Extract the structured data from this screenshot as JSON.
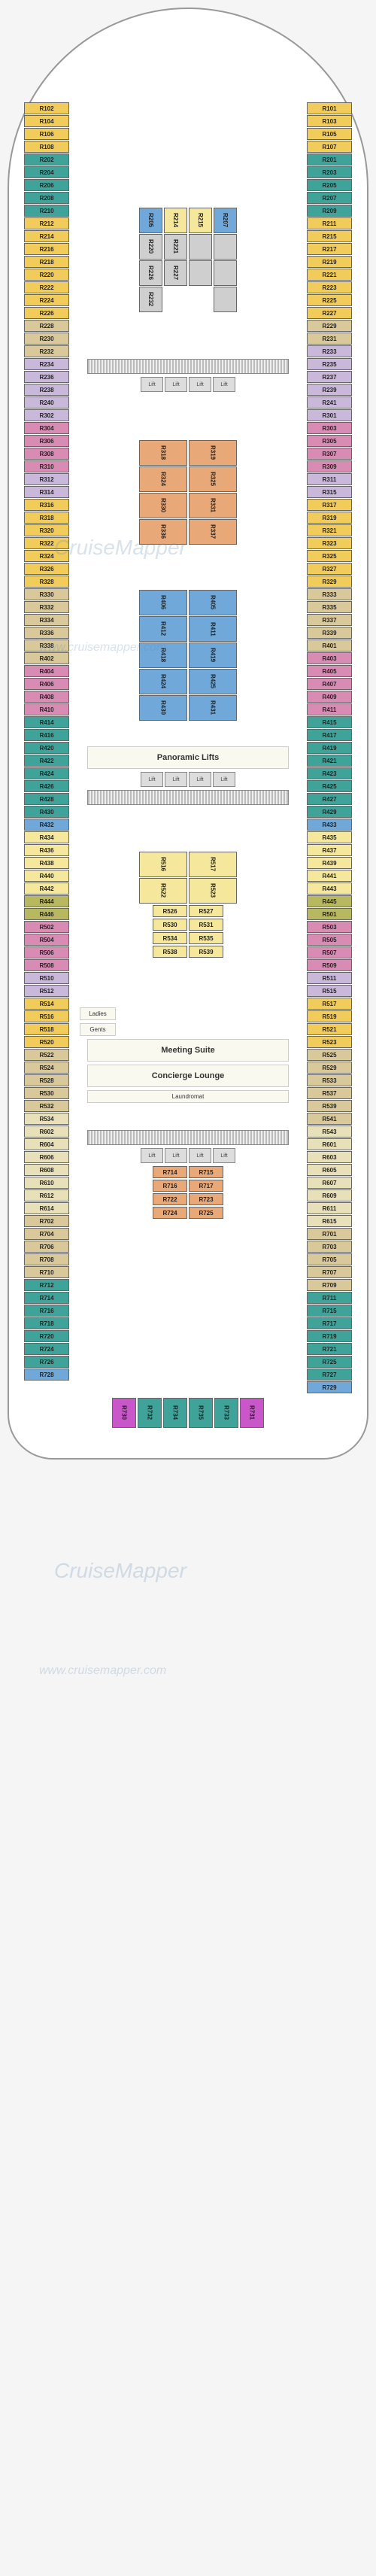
{
  "watermarks": {
    "brand": "CruiseMapper",
    "url": "www.cruisemapper.com"
  },
  "colors": {
    "yellow": "#f2cc5a",
    "teal": "#3fa39a",
    "tan": "#d9c89a",
    "pink": "#d98cb3",
    "blue": "#6fa8d9",
    "beige": "#e8e0b8",
    "lilac": "#c9b8d9",
    "salmon": "#e8a878",
    "green": "#7fb88c",
    "magenta": "#c957c9",
    "grey": "#cfcfcf",
    "olive": "#b8b860",
    "lightyellow": "#f5e89c"
  },
  "amenities": {
    "panoramic": "Panoramic Lifts",
    "meeting": "Meeting Suite",
    "concierge": "Concierge Lounge",
    "laundromat": "Laundromat",
    "ladies": "Ladies",
    "gents": "Gents"
  },
  "lift_label": "Lift",
  "port1": [
    {
      "n": "R102",
      "c": "yellow"
    },
    {
      "n": "R104",
      "c": "yellow"
    },
    {
      "n": "R106",
      "c": "yellow"
    },
    {
      "n": "R108",
      "c": "yellow"
    },
    {
      "n": "R202",
      "c": "teal"
    },
    {
      "n": "R204",
      "c": "teal"
    },
    {
      "n": "R206",
      "c": "teal"
    },
    {
      "n": "R208",
      "c": "teal"
    },
    {
      "n": "R210",
      "c": "teal"
    },
    {
      "n": "R212",
      "c": "yellow"
    },
    {
      "n": "R214",
      "c": "yellow"
    },
    {
      "n": "R216",
      "c": "yellow"
    },
    {
      "n": "R218",
      "c": "yellow"
    },
    {
      "n": "R220",
      "c": "yellow"
    },
    {
      "n": "R222",
      "c": "yellow"
    },
    {
      "n": "R224",
      "c": "yellow"
    },
    {
      "n": "R226",
      "c": "yellow"
    },
    {
      "n": "R228",
      "c": "tan"
    },
    {
      "n": "R230",
      "c": "tan"
    },
    {
      "n": "R232",
      "c": "tan"
    },
    {
      "n": "R234",
      "c": "lilac"
    },
    {
      "n": "R236",
      "c": "lilac"
    },
    {
      "n": "R238",
      "c": "lilac"
    },
    {
      "n": "R240",
      "c": "lilac"
    },
    {
      "n": "R302",
      "c": "lilac"
    },
    {
      "n": "R304",
      "c": "pink"
    },
    {
      "n": "R306",
      "c": "pink"
    },
    {
      "n": "R308",
      "c": "pink"
    },
    {
      "n": "R310",
      "c": "pink"
    },
    {
      "n": "R312",
      "c": "lilac"
    },
    {
      "n": "R314",
      "c": "lilac"
    },
    {
      "n": "R316",
      "c": "yellow"
    },
    {
      "n": "R318",
      "c": "yellow"
    },
    {
      "n": "R320",
      "c": "yellow"
    },
    {
      "n": "R322",
      "c": "yellow"
    },
    {
      "n": "R324",
      "c": "yellow"
    },
    {
      "n": "R326",
      "c": "yellow"
    },
    {
      "n": "R328",
      "c": "yellow"
    },
    {
      "n": "R330",
      "c": "tan"
    },
    {
      "n": "R332",
      "c": "tan"
    },
    {
      "n": "R334",
      "c": "tan"
    },
    {
      "n": "R336",
      "c": "tan"
    },
    {
      "n": "R338",
      "c": "tan"
    },
    {
      "n": "R402",
      "c": "tan"
    },
    {
      "n": "R404",
      "c": "pink"
    },
    {
      "n": "R406",
      "c": "pink"
    },
    {
      "n": "R408",
      "c": "pink"
    },
    {
      "n": "R410",
      "c": "pink"
    },
    {
      "n": "R414",
      "c": "teal"
    },
    {
      "n": "R416",
      "c": "teal"
    },
    {
      "n": "R420",
      "c": "teal"
    },
    {
      "n": "R422",
      "c": "teal"
    },
    {
      "n": "R424",
      "c": "teal"
    },
    {
      "n": "R426",
      "c": "teal"
    },
    {
      "n": "R428",
      "c": "teal"
    },
    {
      "n": "R430",
      "c": "teal"
    },
    {
      "n": "R432",
      "c": "blue"
    },
    {
      "n": "R434",
      "c": "lightyellow"
    },
    {
      "n": "R436",
      "c": "lightyellow"
    },
    {
      "n": "R438",
      "c": "lightyellow"
    },
    {
      "n": "R440",
      "c": "lightyellow"
    },
    {
      "n": "R442",
      "c": "lightyellow"
    },
    {
      "n": "R444",
      "c": "olive"
    },
    {
      "n": "R446",
      "c": "olive"
    },
    {
      "n": "R502",
      "c": "pink"
    },
    {
      "n": "R504",
      "c": "pink"
    },
    {
      "n": "R506",
      "c": "pink"
    },
    {
      "n": "R508",
      "c": "pink"
    },
    {
      "n": "R510",
      "c": "lilac"
    },
    {
      "n": "R512",
      "c": "lilac"
    },
    {
      "n": "R514",
      "c": "yellow"
    },
    {
      "n": "R516",
      "c": "yellow"
    },
    {
      "n": "R518",
      "c": "yellow"
    },
    {
      "n": "R520",
      "c": "yellow"
    },
    {
      "n": "R522",
      "c": "tan"
    },
    {
      "n": "R524",
      "c": "tan"
    },
    {
      "n": "R528",
      "c": "tan"
    },
    {
      "n": "R530",
      "c": "tan"
    },
    {
      "n": "R532",
      "c": "tan"
    },
    {
      "n": "R534",
      "c": "beige"
    },
    {
      "n": "R602",
      "c": "beige"
    },
    {
      "n": "R604",
      "c": "beige"
    },
    {
      "n": "R606",
      "c": "beige"
    },
    {
      "n": "R608",
      "c": "beige"
    },
    {
      "n": "R610",
      "c": "beige"
    },
    {
      "n": "R612",
      "c": "beige"
    },
    {
      "n": "R614",
      "c": "beige"
    },
    {
      "n": "R702",
      "c": "tan"
    },
    {
      "n": "R704",
      "c": "tan"
    },
    {
      "n": "R706",
      "c": "tan"
    },
    {
      "n": "R708",
      "c": "tan"
    },
    {
      "n": "R710",
      "c": "tan"
    },
    {
      "n": "R712",
      "c": "teal"
    },
    {
      "n": "R714",
      "c": "teal"
    },
    {
      "n": "R716",
      "c": "teal"
    },
    {
      "n": "R718",
      "c": "teal"
    },
    {
      "n": "R720",
      "c": "teal"
    },
    {
      "n": "R724",
      "c": "teal"
    },
    {
      "n": "R726",
      "c": "teal"
    },
    {
      "n": "R728",
      "c": "blue"
    }
  ],
  "stbd1": [
    {
      "n": "R101",
      "c": "yellow"
    },
    {
      "n": "R103",
      "c": "yellow"
    },
    {
      "n": "R105",
      "c": "yellow"
    },
    {
      "n": "R107",
      "c": "yellow"
    },
    {
      "n": "R201",
      "c": "teal"
    },
    {
      "n": "R203",
      "c": "teal"
    },
    {
      "n": "R205",
      "c": "teal"
    },
    {
      "n": "R207",
      "c": "teal"
    },
    {
      "n": "R209",
      "c": "teal"
    },
    {
      "n": "R211",
      "c": "yellow"
    },
    {
      "n": "R215",
      "c": "yellow"
    },
    {
      "n": "R217",
      "c": "yellow"
    },
    {
      "n": "R219",
      "c": "yellow"
    },
    {
      "n": "R221",
      "c": "yellow"
    },
    {
      "n": "R223",
      "c": "yellow"
    },
    {
      "n": "R225",
      "c": "yellow"
    },
    {
      "n": "R227",
      "c": "yellow"
    },
    {
      "n": "R229",
      "c": "tan"
    },
    {
      "n": "R231",
      "c": "tan"
    },
    {
      "n": "R233",
      "c": "lilac"
    },
    {
      "n": "R235",
      "c": "lilac"
    },
    {
      "n": "R237",
      "c": "lilac"
    },
    {
      "n": "R239",
      "c": "lilac"
    },
    {
      "n": "R241",
      "c": "lilac"
    },
    {
      "n": "R301",
      "c": "lilac"
    },
    {
      "n": "R303",
      "c": "pink"
    },
    {
      "n": "R305",
      "c": "pink"
    },
    {
      "n": "R307",
      "c": "pink"
    },
    {
      "n": "R309",
      "c": "pink"
    },
    {
      "n": "R311",
      "c": "lilac"
    },
    {
      "n": "R315",
      "c": "lilac"
    },
    {
      "n": "R317",
      "c": "yellow"
    },
    {
      "n": "R319",
      "c": "yellow"
    },
    {
      "n": "R321",
      "c": "yellow"
    },
    {
      "n": "R323",
      "c": "yellow"
    },
    {
      "n": "R325",
      "c": "yellow"
    },
    {
      "n": "R327",
      "c": "yellow"
    },
    {
      "n": "R329",
      "c": "yellow"
    },
    {
      "n": "R333",
      "c": "tan"
    },
    {
      "n": "R335",
      "c": "tan"
    },
    {
      "n": "R337",
      "c": "tan"
    },
    {
      "n": "R339",
      "c": "tan"
    },
    {
      "n": "R401",
      "c": "tan"
    },
    {
      "n": "R403",
      "c": "pink"
    },
    {
      "n": "R405",
      "c": "pink"
    },
    {
      "n": "R407",
      "c": "pink"
    },
    {
      "n": "R409",
      "c": "pink"
    },
    {
      "n": "R411",
      "c": "pink"
    },
    {
      "n": "R415",
      "c": "teal"
    },
    {
      "n": "R417",
      "c": "teal"
    },
    {
      "n": "R419",
      "c": "teal"
    },
    {
      "n": "R421",
      "c": "teal"
    },
    {
      "n": "R423",
      "c": "teal"
    },
    {
      "n": "R425",
      "c": "teal"
    },
    {
      "n": "R427",
      "c": "teal"
    },
    {
      "n": "R429",
      "c": "teal"
    },
    {
      "n": "R433",
      "c": "blue"
    },
    {
      "n": "R435",
      "c": "lightyellow"
    },
    {
      "n": "R437",
      "c": "lightyellow"
    },
    {
      "n": "R439",
      "c": "lightyellow"
    },
    {
      "n": "R441",
      "c": "lightyellow"
    },
    {
      "n": "R443",
      "c": "lightyellow"
    },
    {
      "n": "R445",
      "c": "olive"
    },
    {
      "n": "R501",
      "c": "olive"
    },
    {
      "n": "R503",
      "c": "pink"
    },
    {
      "n": "R505",
      "c": "pink"
    },
    {
      "n": "R507",
      "c": "pink"
    },
    {
      "n": "R509",
      "c": "pink"
    },
    {
      "n": "R511",
      "c": "lilac"
    },
    {
      "n": "R515",
      "c": "lilac"
    },
    {
      "n": "R517",
      "c": "yellow"
    },
    {
      "n": "R519",
      "c": "yellow"
    },
    {
      "n": "R521",
      "c": "yellow"
    },
    {
      "n": "R523",
      "c": "yellow"
    },
    {
      "n": "R525",
      "c": "tan"
    },
    {
      "n": "R529",
      "c": "tan"
    },
    {
      "n": "R533",
      "c": "tan"
    },
    {
      "n": "R537",
      "c": "tan"
    },
    {
      "n": "R539",
      "c": "tan"
    },
    {
      "n": "R541",
      "c": "tan"
    },
    {
      "n": "R543",
      "c": "beige"
    },
    {
      "n": "R601",
      "c": "beige"
    },
    {
      "n": "R603",
      "c": "beige"
    },
    {
      "n": "R605",
      "c": "beige"
    },
    {
      "n": "R607",
      "c": "beige"
    },
    {
      "n": "R609",
      "c": "beige"
    },
    {
      "n": "R611",
      "c": "beige"
    },
    {
      "n": "R615",
      "c": "beige"
    },
    {
      "n": "R701",
      "c": "tan"
    },
    {
      "n": "R703",
      "c": "tan"
    },
    {
      "n": "R705",
      "c": "tan"
    },
    {
      "n": "R707",
      "c": "tan"
    },
    {
      "n": "R709",
      "c": "tan"
    },
    {
      "n": "R711",
      "c": "teal"
    },
    {
      "n": "R715",
      "c": "teal"
    },
    {
      "n": "R717",
      "c": "teal"
    },
    {
      "n": "R719",
      "c": "teal"
    },
    {
      "n": "R721",
      "c": "teal"
    },
    {
      "n": "R725",
      "c": "teal"
    },
    {
      "n": "R727",
      "c": "teal"
    },
    {
      "n": "R729",
      "c": "blue"
    }
  ],
  "mid_block_a": {
    "left": [
      {
        "n": "R205",
        "c": "blue"
      },
      {
        "n": "R220",
        "c": "grey"
      },
      {
        "n": "R226",
        "c": "grey"
      },
      {
        "n": "R232",
        "c": "grey"
      }
    ],
    "midL": [
      {
        "n": "R214",
        "c": "lightyellow"
      },
      {
        "n": "R221",
        "c": "grey"
      },
      {
        "n": "R227",
        "c": "grey"
      }
    ],
    "midR": [
      {
        "n": "R215",
        "c": "lightyellow"
      },
      {
        "n": "",
        "c": "grey"
      },
      {
        "n": "",
        "c": "grey"
      }
    ],
    "right": [
      {
        "n": "R207",
        "c": "blue"
      },
      {
        "n": "",
        "c": "grey"
      },
      {
        "n": "",
        "c": "grey"
      },
      {
        "n": "",
        "c": "grey"
      }
    ]
  },
  "mid_block_b": {
    "left": [
      {
        "n": "R318",
        "c": "salmon"
      },
      {
        "n": "R324",
        "c": "salmon"
      },
      {
        "n": "R330",
        "c": "salmon"
      },
      {
        "n": "R336",
        "c": "salmon"
      }
    ],
    "right": [
      {
        "n": "R319",
        "c": "salmon"
      },
      {
        "n": "R325",
        "c": "salmon"
      },
      {
        "n": "R331",
        "c": "salmon"
      },
      {
        "n": "R337",
        "c": "salmon"
      }
    ]
  },
  "mid_block_c": {
    "left": [
      {
        "n": "R406",
        "c": "blue"
      },
      {
        "n": "R412",
        "c": "blue"
      },
      {
        "n": "R418",
        "c": "blue"
      },
      {
        "n": "R424",
        "c": "blue"
      },
      {
        "n": "R430",
        "c": "blue"
      }
    ],
    "right": [
      {
        "n": "R405",
        "c": "blue"
      },
      {
        "n": "R411",
        "c": "blue"
      },
      {
        "n": "R419",
        "c": "blue"
      },
      {
        "n": "R425",
        "c": "blue"
      },
      {
        "n": "R431",
        "c": "blue"
      }
    ]
  },
  "mid_block_d": {
    "left": [
      {
        "n": "R516",
        "c": "lightyellow"
      },
      {
        "n": "R522",
        "c": "lightyellow"
      }
    ],
    "right": [
      {
        "n": "R517",
        "c": "lightyellow"
      },
      {
        "n": "R523",
        "c": "lightyellow"
      }
    ]
  },
  "inner_rows_d": [
    [
      {
        "n": "R526",
        "c": "lightyellow"
      },
      {
        "n": "R527",
        "c": "lightyellow"
      }
    ],
    [
      {
        "n": "R530",
        "c": "lightyellow"
      },
      {
        "n": "R531",
        "c": "lightyellow"
      }
    ],
    [
      {
        "n": "R534",
        "c": "lightyellow"
      },
      {
        "n": "R535",
        "c": "lightyellow"
      }
    ],
    [
      {
        "n": "R538",
        "c": "lightyellow"
      },
      {
        "n": "R539",
        "c": "lightyellow"
      }
    ]
  ],
  "inner_rows_e": [
    [
      {
        "n": "R714",
        "c": "salmon"
      },
      {
        "n": "R715",
        "c": "salmon"
      }
    ],
    [
      {
        "n": "R716",
        "c": "salmon"
      },
      {
        "n": "R717",
        "c": "salmon"
      }
    ],
    [
      {
        "n": "R722",
        "c": "salmon"
      },
      {
        "n": "R723",
        "c": "salmon"
      }
    ],
    [
      {
        "n": "R724",
        "c": "salmon"
      },
      {
        "n": "R725",
        "c": "salmon"
      }
    ]
  ],
  "bottom": [
    {
      "n": "R730",
      "c": "magenta"
    },
    {
      "n": "R732",
      "c": "teal"
    },
    {
      "n": "R734",
      "c": "teal"
    },
    {
      "n": "R735",
      "c": "teal"
    },
    {
      "n": "R733",
      "c": "teal"
    },
    {
      "n": "R731",
      "c": "magenta"
    }
  ]
}
